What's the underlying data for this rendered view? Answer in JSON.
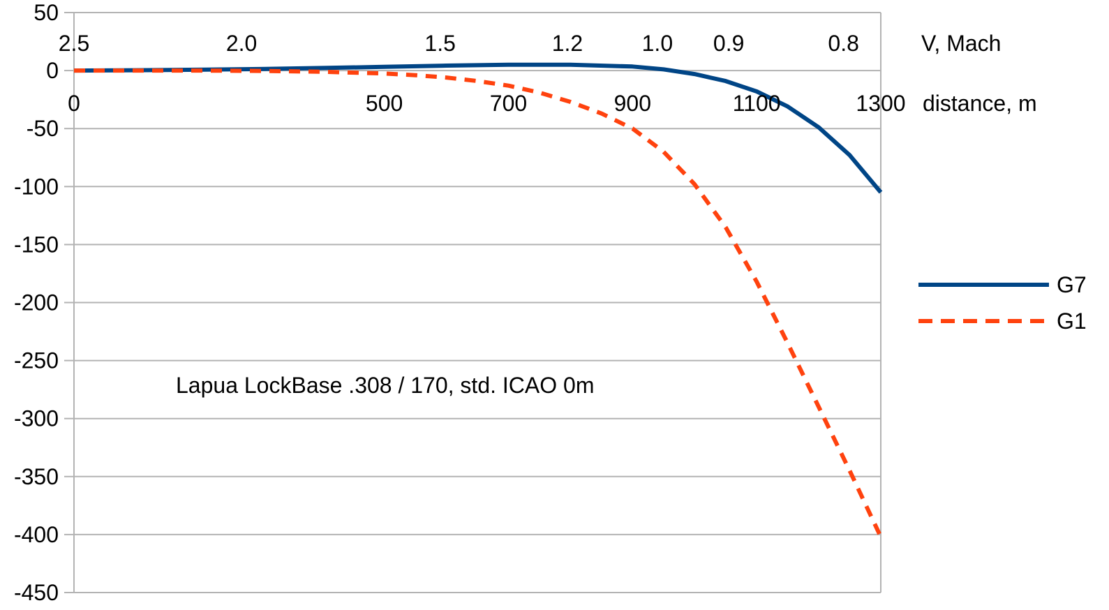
{
  "chart_data": {
    "type": "line",
    "annotation": "Lapua LockBase .308 / 170, std. ICAO 0m",
    "y_axis": {
      "ylim": [
        -450,
        50
      ],
      "ticks": [
        "50",
        "0",
        "-50",
        "-100",
        "-150",
        "-200",
        "-250",
        "-300",
        "-350",
        "-400",
        "-450"
      ],
      "tick_values": [
        50,
        0,
        -50,
        -100,
        -150,
        -200,
        -250,
        -300,
        -350,
        -400,
        -450
      ]
    },
    "x_axis": {
      "label": "distance, m",
      "xlim": [
        0,
        1300
      ],
      "ticks": [
        "0",
        "500",
        "700",
        "900",
        "1100",
        "1300"
      ],
      "tick_values": [
        0,
        500,
        700,
        900,
        1100,
        1300
      ]
    },
    "mach_axis": {
      "label": "V, Mach",
      "ticks": [
        "2.5",
        "2.0",
        "1.5",
        "1.2",
        "1.0",
        "0.9",
        "0.8"
      ],
      "tick_distances": [
        0,
        270,
        590,
        795,
        940,
        1055,
        1240
      ]
    },
    "grid": true,
    "legend_position": "right",
    "colors": {
      "G7": "#004586",
      "G1": "#ff420e",
      "grid": "#b3b3b3"
    },
    "series": [
      {
        "name": "G7",
        "style": "solid",
        "x": [
          0,
          100,
          200,
          300,
          400,
          500,
          600,
          700,
          800,
          900,
          950,
          1000,
          1050,
          1100,
          1150,
          1200,
          1250,
          1300
        ],
        "values": [
          0,
          0.3,
          0.7,
          1.3,
          2.2,
          3.2,
          4.3,
          5.0,
          5.0,
          3.5,
          1.0,
          -3.0,
          -9.0,
          -18.0,
          -31.0,
          -49.0,
          -73.0,
          -105.0
        ]
      },
      {
        "name": "G1",
        "style": "dashed",
        "x": [
          0,
          100,
          200,
          300,
          400,
          500,
          550,
          600,
          650,
          700,
          750,
          800,
          850,
          900,
          950,
          1000,
          1050,
          1100,
          1150,
          1200,
          1250,
          1300
        ],
        "values": [
          0,
          0,
          0,
          -0.3,
          -1.0,
          -2.5,
          -4.0,
          -6.0,
          -9.0,
          -13.0,
          -19.0,
          -27.0,
          -37.0,
          -50.0,
          -70.0,
          -98.0,
          -135.0,
          -182.0,
          -235.0,
          -290.0,
          -345.0,
          -402.0
        ]
      }
    ]
  }
}
